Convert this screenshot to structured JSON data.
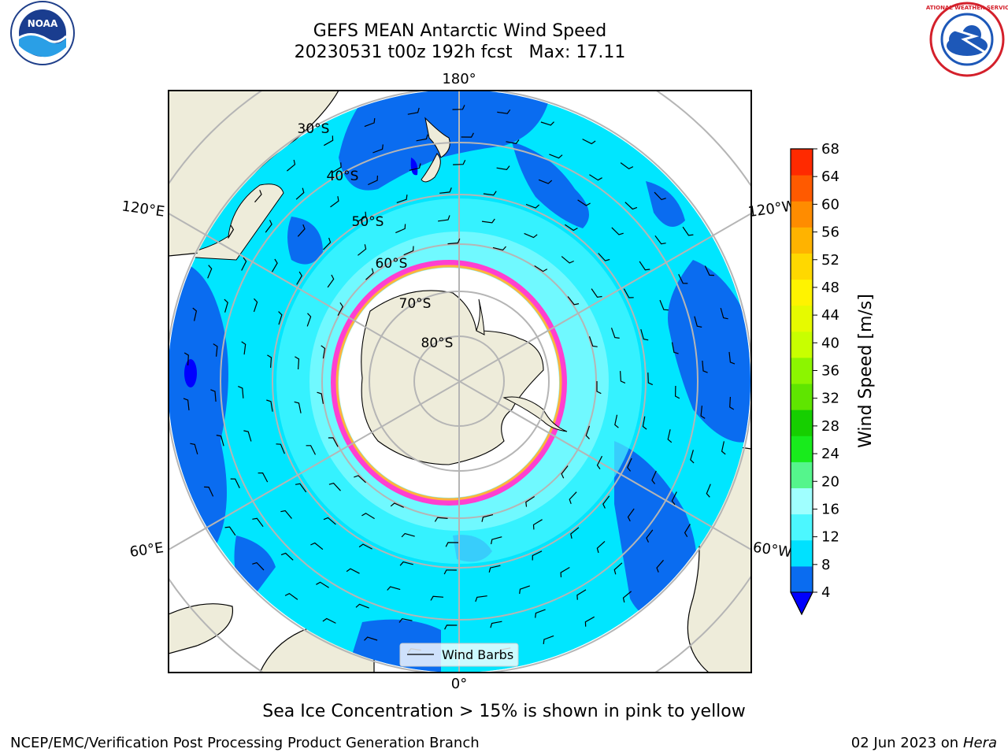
{
  "title_line1": "GEFS MEAN Antarctic Wind Speed",
  "title_line2": "20230531 t00z 192h fcst   Max: 17.11",
  "longitude_labels": [
    "180°",
    "0°",
    "120°E",
    "120°W",
    "60°E",
    "60°W"
  ],
  "latitude_labels": [
    "30°S",
    "40°S",
    "50°S",
    "60°S",
    "70°S",
    "80°S"
  ],
  "colorbar": {
    "label": "Wind Speed [m/s]",
    "ticks": [
      "4",
      "8",
      "12",
      "16",
      "20",
      "24",
      "28",
      "32",
      "36",
      "40",
      "44",
      "48",
      "52",
      "56",
      "60",
      "64",
      "68"
    ],
    "colors": [
      "#0a6cf0",
      "#00e1ff",
      "#4cf7ff",
      "#a0ffff",
      "#55f58c",
      "#18eb1c",
      "#16cf00",
      "#5fe500",
      "#8cf500",
      "#c8ff00",
      "#e6fa00",
      "#fff300",
      "#ffd800",
      "#ffb300",
      "#ff8c00",
      "#ff5a00",
      "#ff2a00"
    ],
    "under_color": "#0000ff"
  },
  "legend": {
    "label": "Wind Barbs"
  },
  "caption": "Sea Ice Concentration > 15% is shown in pink to yellow",
  "footer_left": "NCEP/EMC/Verification Post Processing Product Generation Branch",
  "footer_right_text": "02 Jun 2023 on",
  "footer_right_host": "Hera",
  "logos": {
    "noaa_text": "NOAA",
    "nws_text": "NATIONAL WEATHER SERVICE"
  },
  "colors": {
    "land": "#eeecda",
    "ice_sheet": "#ffffff",
    "ocean_low": "#0a6cf0",
    "ocean_mid": "#00e6ff",
    "ocean_high": "#4cf7ff",
    "sea_ice": "#ff3fd0",
    "grid": "#b5b5b5"
  }
}
